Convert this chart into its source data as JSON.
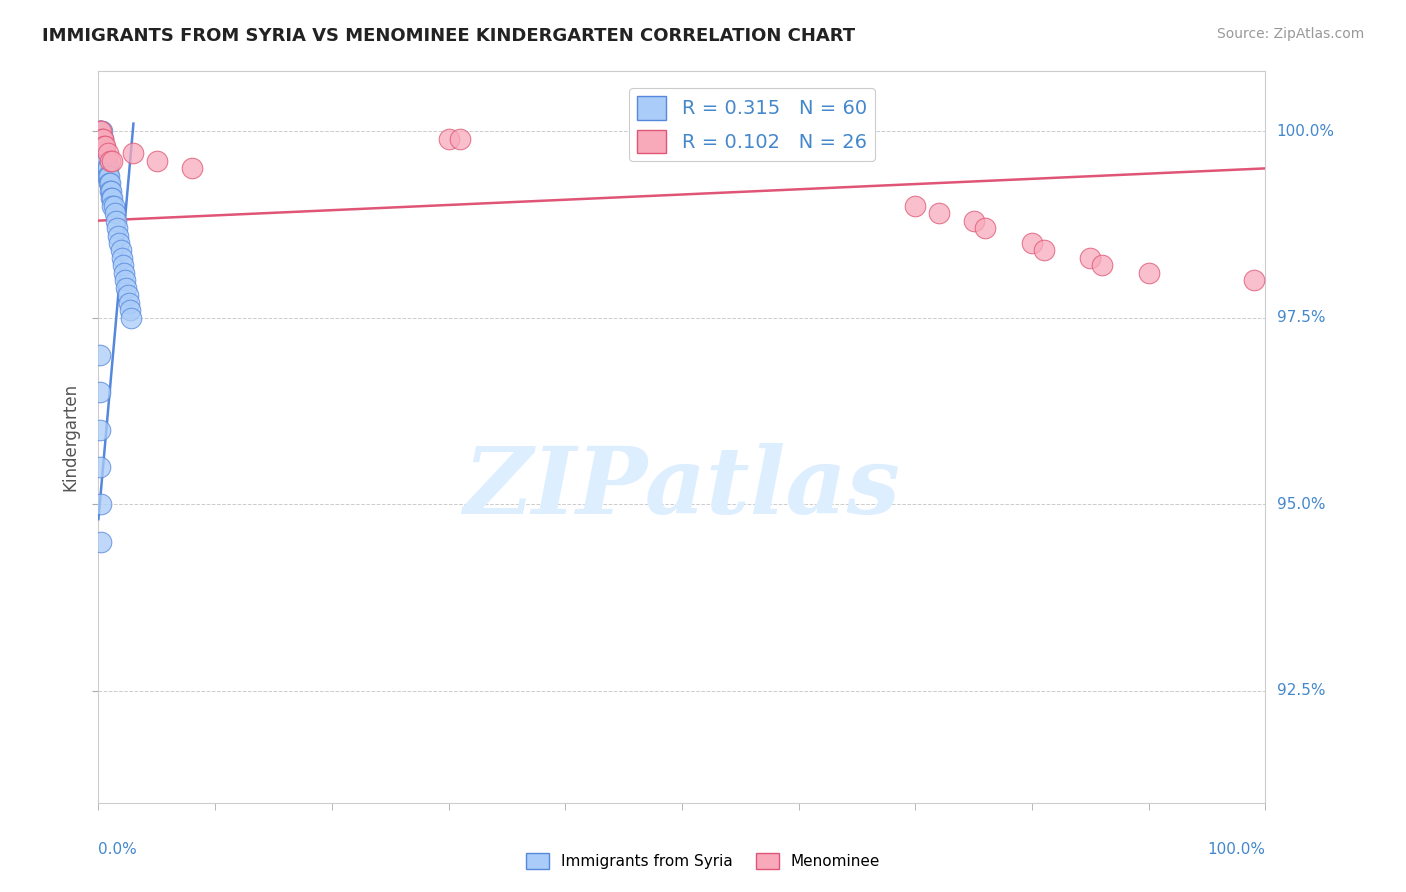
{
  "title": "IMMIGRANTS FROM SYRIA VS MENOMINEE KINDERGARTEN CORRELATION CHART",
  "source": "Source: ZipAtlas.com",
  "ylabel": "Kindergarten",
  "legend_entries": [
    {
      "label": "R = 0.315   N = 60"
    },
    {
      "label": "R = 0.102   N = 26"
    }
  ],
  "bottom_legend": [
    {
      "label": "Immigrants from Syria"
    },
    {
      "label": "Menominee"
    }
  ],
  "blue_scatter_x": [
    0.001,
    0.001,
    0.001,
    0.001,
    0.002,
    0.002,
    0.002,
    0.002,
    0.002,
    0.003,
    0.003,
    0.003,
    0.003,
    0.003,
    0.004,
    0.004,
    0.004,
    0.004,
    0.005,
    0.005,
    0.005,
    0.005,
    0.006,
    0.006,
    0.006,
    0.007,
    0.007,
    0.007,
    0.008,
    0.008,
    0.009,
    0.009,
    0.01,
    0.01,
    0.011,
    0.011,
    0.012,
    0.012,
    0.013,
    0.014,
    0.015,
    0.016,
    0.017,
    0.018,
    0.019,
    0.02,
    0.021,
    0.022,
    0.023,
    0.024,
    0.025,
    0.026,
    0.027,
    0.028,
    0.001,
    0.001,
    0.001,
    0.001,
    0.002,
    0.002
  ],
  "blue_scatter_y": [
    1.0,
    1.0,
    0.999,
    0.999,
    1.0,
    0.999,
    0.999,
    0.998,
    0.998,
    1.0,
    0.999,
    0.998,
    0.998,
    0.997,
    0.999,
    0.998,
    0.997,
    0.996,
    0.998,
    0.997,
    0.996,
    0.995,
    0.997,
    0.996,
    0.995,
    0.996,
    0.995,
    0.994,
    0.995,
    0.994,
    0.994,
    0.993,
    0.993,
    0.992,
    0.992,
    0.991,
    0.991,
    0.99,
    0.99,
    0.989,
    0.988,
    0.987,
    0.986,
    0.985,
    0.984,
    0.983,
    0.982,
    0.981,
    0.98,
    0.979,
    0.978,
    0.977,
    0.976,
    0.975,
    0.97,
    0.965,
    0.96,
    0.955,
    0.95,
    0.945
  ],
  "pink_scatter_x": [
    0.001,
    0.002,
    0.003,
    0.004,
    0.005,
    0.006,
    0.008,
    0.01,
    0.012,
    0.3,
    0.31,
    0.6,
    0.65,
    0.7,
    0.72,
    0.75,
    0.76,
    0.8,
    0.81,
    0.85,
    0.86,
    0.9,
    0.99,
    0.03,
    0.05,
    0.08
  ],
  "pink_scatter_y": [
    1.0,
    1.0,
    0.999,
    0.999,
    0.998,
    0.998,
    0.997,
    0.996,
    0.996,
    0.999,
    0.999,
    1.0,
    1.0,
    0.99,
    0.989,
    0.988,
    0.987,
    0.985,
    0.984,
    0.983,
    0.982,
    0.981,
    0.98,
    0.997,
    0.996,
    0.995
  ],
  "blue_line_x": [
    0.0,
    0.03
  ],
  "blue_line_y": [
    0.948,
    1.001
  ],
  "pink_line_x": [
    0.0,
    1.0
  ],
  "pink_line_y": [
    0.988,
    0.995
  ],
  "x_min": 0.0,
  "x_max": 1.0,
  "y_min": 0.91,
  "y_max": 1.008,
  "y_ticks": [
    0.925,
    0.95,
    0.975,
    1.0
  ],
  "y_tick_labels": [
    "92.5%",
    "95.0%",
    "97.5%",
    "100.0%"
  ],
  "bg_color": "#ffffff",
  "grid_color": "#cccccc",
  "scatter_blue": "#aaccf8",
  "scatter_pink": "#f8aabb",
  "line_blue": "#5588dd",
  "line_pink": "#e05575",
  "legend_blue_fill": "#aaccf8",
  "legend_blue_edge": "#5588dd",
  "legend_pink_fill": "#f8aabb",
  "legend_pink_edge": "#e05575",
  "title_color": "#222222",
  "source_color": "#999999",
  "axis_label_color": "#4488cc",
  "tick_label_color": "#666666",
  "watermark_text": "ZIPatlas",
  "watermark_color": "#ddeeff"
}
